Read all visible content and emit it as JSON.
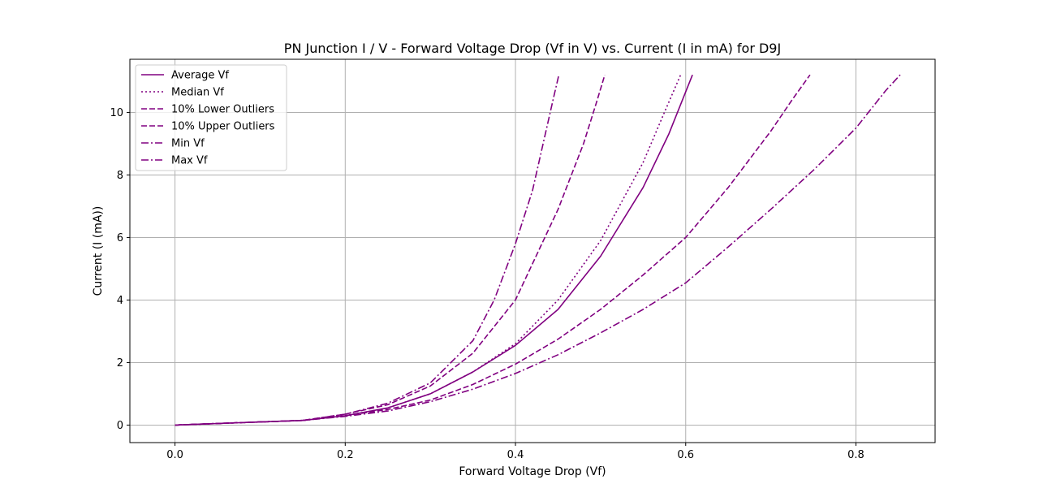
{
  "chart_data": {
    "type": "line",
    "title": "PN Junction I / V - Forward Voltage Drop (Vf in V) vs. Current (I in mA) for D9J",
    "xlabel": "Forward Voltage Drop (Vf)",
    "ylabel": "Current (I (mA))",
    "xlim": [
      -0.053,
      0.893
    ],
    "ylim": [
      -0.56,
      11.7
    ],
    "xticks": [
      0.0,
      0.2,
      0.4,
      0.6,
      0.8
    ],
    "xtick_labels": [
      "0.0",
      "0.2",
      "0.4",
      "0.6",
      "0.8"
    ],
    "yticks": [
      0,
      2,
      4,
      6,
      8,
      10
    ],
    "ytick_labels": [
      "0",
      "2",
      "4",
      "6",
      "8",
      "10"
    ],
    "grid": true,
    "legend_position": "top-left",
    "color": "#800080",
    "series": [
      {
        "name": "Average Vf",
        "style": "solid",
        "x": [
          0.0,
          0.05,
          0.1,
          0.15,
          0.2,
          0.25,
          0.3,
          0.35,
          0.4,
          0.45,
          0.5,
          0.55,
          0.58,
          0.608
        ],
        "y": [
          0.0,
          0.05,
          0.1,
          0.15,
          0.3,
          0.55,
          1.0,
          1.7,
          2.55,
          3.7,
          5.4,
          7.6,
          9.3,
          11.2
        ]
      },
      {
        "name": "Median Vf",
        "style": "dotted",
        "x": [
          0.0,
          0.05,
          0.1,
          0.15,
          0.2,
          0.25,
          0.3,
          0.35,
          0.4,
          0.45,
          0.5,
          0.55,
          0.575,
          0.594
        ],
        "y": [
          0.0,
          0.05,
          0.1,
          0.15,
          0.3,
          0.55,
          1.0,
          1.7,
          2.6,
          4.0,
          5.9,
          8.4,
          10.0,
          11.2
        ]
      },
      {
        "name": "10% Lower Outliers",
        "style": "dashed",
        "x": [
          0.0,
          0.05,
          0.1,
          0.15,
          0.2,
          0.25,
          0.3,
          0.35,
          0.4,
          0.45,
          0.48,
          0.495,
          0.505
        ],
        "y": [
          0.0,
          0.05,
          0.1,
          0.15,
          0.35,
          0.65,
          1.25,
          2.3,
          4.0,
          6.9,
          9.0,
          10.3,
          11.2
        ]
      },
      {
        "name": "10% Upper Outliers",
        "style": "dashed",
        "x": [
          0.0,
          0.05,
          0.1,
          0.15,
          0.2,
          0.25,
          0.3,
          0.35,
          0.4,
          0.45,
          0.5,
          0.55,
          0.6,
          0.65,
          0.7,
          0.725,
          0.746
        ],
        "y": [
          0.0,
          0.05,
          0.1,
          0.15,
          0.3,
          0.5,
          0.8,
          1.3,
          1.95,
          2.75,
          3.7,
          4.8,
          6.0,
          7.6,
          9.4,
          10.4,
          11.2
        ]
      },
      {
        "name": "Min Vf",
        "style": "dashdot",
        "x": [
          0.0,
          0.05,
          0.1,
          0.15,
          0.2,
          0.25,
          0.3,
          0.35,
          0.4,
          0.45,
          0.5,
          0.55,
          0.6,
          0.65,
          0.7,
          0.75,
          0.8,
          0.835,
          0.852
        ],
        "y": [
          0.0,
          0.05,
          0.1,
          0.15,
          0.28,
          0.45,
          0.75,
          1.15,
          1.65,
          2.25,
          2.95,
          3.7,
          4.55,
          5.7,
          6.9,
          8.15,
          9.5,
          10.7,
          11.2
        ]
      },
      {
        "name": "Max Vf",
        "style": "dashdot",
        "x": [
          0.0,
          0.05,
          0.1,
          0.15,
          0.2,
          0.25,
          0.3,
          0.35,
          0.375,
          0.4,
          0.42,
          0.435,
          0.445,
          0.451
        ],
        "y": [
          0.0,
          0.05,
          0.1,
          0.15,
          0.35,
          0.7,
          1.35,
          2.7,
          4.0,
          5.8,
          7.5,
          9.3,
          10.5,
          11.2
        ]
      }
    ]
  }
}
